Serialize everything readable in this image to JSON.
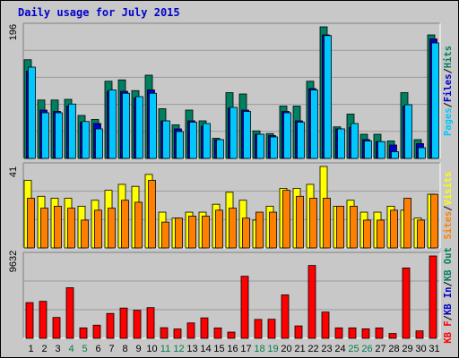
{
  "chart_data": {
    "type": "bar",
    "title": "Daily usage for July 2015",
    "categories": [
      "1",
      "2",
      "3",
      "4",
      "5",
      "6",
      "7",
      "8",
      "9",
      "10",
      "11",
      "12",
      "13",
      "14",
      "15",
      "16",
      "17",
      "18",
      "19",
      "20",
      "21",
      "22",
      "23",
      "24",
      "25",
      "26",
      "27",
      "28",
      "29",
      "30",
      "31"
    ],
    "weekend_days": [
      "4",
      "5",
      "11",
      "12",
      "18",
      "19",
      "25",
      "26"
    ],
    "panels": [
      {
        "name": "hits-files-pages",
        "ymax_label": "196",
        "ylim": [
          0,
          196
        ],
        "legend": [
          {
            "text": "Pages",
            "color": "#00c8ff"
          },
          {
            "text": "/",
            "color": "#000000"
          },
          {
            "text": "Files",
            "color": "#0000cc"
          },
          {
            "text": "/",
            "color": "#000000"
          },
          {
            "text": "Hits",
            "color": "#008060"
          }
        ],
        "series": [
          {
            "name": "Hits",
            "color": "#008060",
            "values": [
              147,
              87,
              87,
              88,
              64,
              58,
              115,
              117,
              101,
              124,
              74,
              50,
              72,
              56,
              30,
              98,
              96,
              41,
              37,
              78,
              78,
              115,
              196,
              47,
              66,
              36,
              36,
              26,
              98,
              28,
              184
            ]
          },
          {
            "name": "Files",
            "color": "#0000cc",
            "values": [
              130,
              72,
              70,
              78,
              54,
              52,
              100,
              100,
              90,
              102,
              56,
              44,
              56,
              48,
              28,
              75,
              72,
              36,
              34,
              70,
              56,
              104,
              184,
              44,
              46,
              28,
              25,
              20,
              78,
              22,
              178
            ]
          },
          {
            "name": "Pages",
            "color": "#00c8ff",
            "values": [
              136,
              68,
              68,
              81,
              55,
              44,
              102,
              97,
              92,
              97,
              56,
              40,
              54,
              52,
              28,
              76,
              70,
              36,
              32,
              68,
              54,
              102,
              183,
              44,
              52,
              26,
              25,
              10,
              80,
              16,
              172
            ]
          }
        ]
      },
      {
        "name": "visits-sites",
        "ymax_label": "41",
        "ylim": [
          0,
          41
        ],
        "legend": [
          {
            "text": "Sites",
            "color": "#ff8000"
          },
          {
            "text": "/",
            "color": "#000000"
          },
          {
            "text": "Visits",
            "color": "#ffff00"
          }
        ],
        "series": [
          {
            "name": "Visits",
            "color": "#ffff00",
            "values": [
              34,
              26,
              25,
              25,
              21,
              24,
              29,
              32,
              31,
              37,
              18,
              15,
              18,
              18,
              22,
              28,
              24,
              14,
              21,
              30,
              30,
              32,
              41,
              21,
              24,
              18,
              18,
              21,
              19,
              15,
              27
            ]
          },
          {
            "name": "Sites",
            "color": "#ff8000",
            "values": [
              25,
              20,
              21,
              20,
              14,
              19,
              20,
              24,
              23,
              34,
              13,
              15,
              16,
              16,
              19,
              20,
              15,
              18,
              18,
              29,
              26,
              25,
              25,
              21,
              21,
              14,
              14,
              19,
              25,
              14,
              27
            ]
          }
        ]
      },
      {
        "name": "kbytes",
        "ymax_label": "9632",
        "ylim": [
          0,
          9632
        ],
        "legend": [
          {
            "text": "KB F",
            "color": "#ff0000"
          },
          {
            "text": "/",
            "color": "#000000"
          },
          {
            "text": "KB In",
            "color": "#0000cc"
          },
          {
            "text": "/",
            "color": "#000000"
          },
          {
            "text": "KB Out",
            "color": "#008060"
          }
        ],
        "series": [
          {
            "name": "KB F",
            "color": "#ff0000",
            "values": [
              4180,
              4330,
              2440,
              5920,
              1220,
              1540,
              2910,
              3540,
              3280,
              3590,
              1240,
              1090,
              1800,
              2390,
              1210,
              730,
              7260,
              2210,
              2230,
              5080,
              1450,
              8520,
              3070,
              1220,
              1220,
              1110,
              1210,
              570,
              8230,
              870,
              9632
            ]
          }
        ]
      }
    ]
  }
}
